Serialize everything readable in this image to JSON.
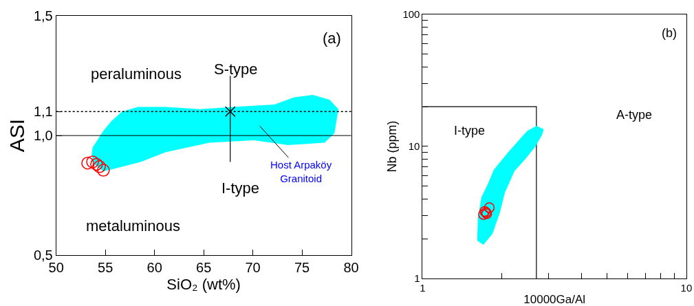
{
  "chart_data": [
    {
      "type": "scatter",
      "xlabel": "SiO₂ (wt%)",
      "ylabel": "ASI",
      "xlim": [
        50,
        80
      ],
      "ylim": [
        0.5,
        1.5
      ],
      "xticks": [
        50,
        55,
        60,
        65,
        70,
        75,
        80
      ],
      "yticks": [
        {
          "value": 0.5,
          "label": "0,5"
        },
        {
          "value": 1.0,
          "label": "1,0"
        },
        {
          "value": 1.1,
          "label": "1,1"
        },
        {
          "value": 1.5,
          "label": "1,5"
        }
      ],
      "ref_lines": [
        {
          "axis": "y",
          "value": 1.0,
          "line_style": "solid",
          "color": "#000000"
        },
        {
          "axis": "y",
          "value": 1.1,
          "line_style": "dotted",
          "color": "#000000"
        }
      ],
      "series": [
        {
          "type": "area",
          "name": "Host Arpaköy Granitoid",
          "color": "#00ffff",
          "x": [
            53.7,
            54.8,
            55.6,
            56.7,
            58.3,
            61.1,
            64.6,
            68.0,
            72.2,
            74.2,
            76.1,
            77.8,
            78.7,
            78.3,
            77.3,
            73.6,
            70.1,
            65.6,
            61.1,
            58.6,
            55.8,
            54.8,
            53.9,
            53.6
          ],
          "values": [
            0.95,
            1.02,
            1.06,
            1.1,
            1.12,
            1.12,
            1.11,
            1.12,
            1.13,
            1.16,
            1.17,
            1.15,
            1.11,
            1.01,
            0.97,
            0.96,
            0.98,
            0.97,
            0.93,
            0.89,
            0.86,
            0.85,
            0.88,
            0.92
          ]
        },
        {
          "type": "line",
          "color": "#000000",
          "x": [
            67.7,
            67.7
          ],
          "values": [
            1.25,
            0.89
          ],
          "marker": "none"
        },
        {
          "type": "scatter",
          "color": "#000000",
          "x": [
            67.7
          ],
          "values": [
            1.1
          ],
          "marker": "cross"
        },
        {
          "color": "#ff0000",
          "x": [
            53.2,
            53.7,
            54.1,
            54.4,
            54.8
          ],
          "values": [
            0.885,
            0.89,
            0.88,
            0.87,
            0.855
          ],
          "marker": "circle"
        }
      ],
      "annotations": [
        "peraluminous",
        "S-type",
        "I-type",
        "metaluminous",
        "(a)"
      ]
    },
    {
      "type": "scatter",
      "xlabel": "10000Ga/Al",
      "ylabel": "Nb (ppm)",
      "log": "xy",
      "xlim": [
        1,
        10
      ],
      "ylim": [
        1,
        100
      ],
      "xticks": [
        1,
        {
          "value": 2,
          "label": null
        },
        {
          "value": 3,
          "label": null
        },
        {
          "value": 4,
          "label": null
        },
        {
          "value": 5,
          "label": null
        },
        {
          "value": 6,
          "label": null
        },
        {
          "value": 7,
          "label": null
        },
        {
          "value": 8,
          "label": null
        },
        {
          "value": 9,
          "label": null
        },
        10
      ],
      "yticks": [
        1,
        {
          "value": 2,
          "label": null
        },
        {
          "value": 3,
          "label": null
        },
        {
          "value": 4,
          "label": null
        },
        {
          "value": 5,
          "label": null
        },
        {
          "value": 6,
          "label": null
        },
        {
          "value": 7,
          "label": null
        },
        {
          "value": 8,
          "label": null
        },
        {
          "value": 9,
          "label": null
        },
        10,
        {
          "value": 20,
          "label": null
        },
        {
          "value": 30,
          "label": null
        },
        {
          "value": 40,
          "label": null
        },
        {
          "value": 50,
          "label": null
        },
        {
          "value": 60,
          "label": null
        },
        {
          "value": 70,
          "label": null
        },
        {
          "value": 80,
          "label": null
        },
        {
          "value": 90,
          "label": null
        },
        100
      ],
      "series": [
        {
          "type": "line",
          "color": "#000000",
          "x": [
            1,
            2.7,
            2.7
          ],
          "values": [
            20,
            20,
            1
          ],
          "marker": "none"
        },
        {
          "type": "area",
          "color": "#00ffff",
          "x": [
            1.61,
            1.62,
            1.67,
            1.77,
            1.86,
            2.12,
            2.49,
            2.7,
            2.88,
            2.83,
            2.67,
            2.44,
            2.23,
            2.05,
            1.96,
            1.84,
            1.7
          ],
          "values": [
            1.93,
            2.88,
            4.12,
            5.23,
            6.64,
            9.14,
            13.1,
            14.3,
            13.5,
            12.1,
            9.9,
            7.94,
            6.51,
            4.46,
            3.12,
            2.18,
            1.8
          ]
        },
        {
          "color": "#ff0000",
          "x": [
            1.7,
            1.74,
            1.79,
            1.75,
            1.72
          ],
          "values": [
            3.05,
            3.16,
            3.44,
            3.09,
            3.22
          ],
          "marker": "circle"
        }
      ],
      "annotations": [
        "I-type",
        "A-type",
        "(b)"
      ]
    }
  ]
}
